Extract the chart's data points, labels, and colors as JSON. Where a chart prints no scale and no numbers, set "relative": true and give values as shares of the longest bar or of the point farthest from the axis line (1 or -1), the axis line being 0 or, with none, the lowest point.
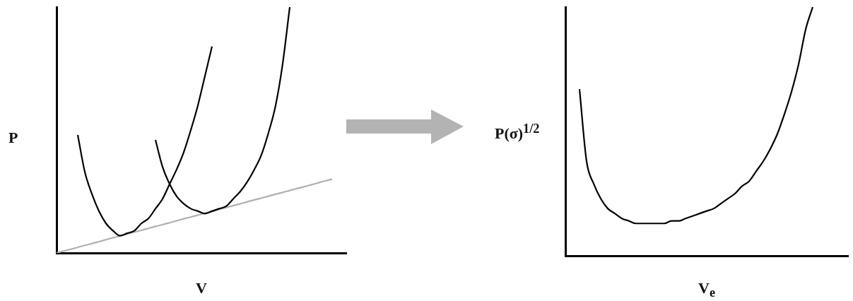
{
  "chart_data": [
    {
      "type": "line",
      "relative": true,
      "tick_labels": false,
      "grid": false,
      "legend": false,
      "xlabel": "V",
      "ylabel": "P",
      "categories": [
        null,
        null,
        null,
        null,
        null,
        null,
        null,
        null,
        null,
        null,
        null,
        null,
        null,
        null,
        null,
        null,
        null,
        null,
        null,
        null,
        null,
        null,
        null,
        null,
        null,
        null,
        null,
        null,
        null,
        null,
        null,
        null,
        null,
        null,
        null,
        null,
        null,
        null,
        null,
        null,
        null,
        null
      ],
      "series": [
        {
          "color": "#000000",
          "values": [
            null,
            null,
            null,
            0.48,
            0.33,
            0.24,
            0.17,
            0.12,
            0.09,
            0.07,
            0.08,
            0.09,
            0.12,
            0.14,
            0.18,
            0.22,
            0.28,
            0.34,
            0.41,
            0.5,
            0.6,
            0.72,
            0.84,
            null,
            null,
            null,
            null,
            null,
            null,
            null,
            null,
            null,
            null,
            null,
            null,
            null,
            null,
            null,
            null,
            null,
            null,
            null
          ]
        },
        {
          "color": "#000000",
          "values": [
            null,
            null,
            null,
            null,
            null,
            null,
            null,
            null,
            null,
            null,
            null,
            null,
            null,
            null,
            0.46,
            0.35,
            0.28,
            0.23,
            0.2,
            0.18,
            0.17,
            0.16,
            0.17,
            0.18,
            0.19,
            0.22,
            0.25,
            0.29,
            0.34,
            0.4,
            0.49,
            0.6,
            0.77,
            1.0,
            null,
            null,
            null,
            null,
            null,
            null,
            null,
            null
          ]
        },
        {
          "color": "#b0b0b0",
          "values": [
            0,
            0.008,
            0.015,
            0.023,
            0.031,
            0.038,
            0.046,
            0.054,
            0.062,
            0.069,
            0.077,
            0.085,
            0.092,
            0.1,
            0.108,
            0.115,
            0.123,
            0.131,
            0.139,
            0.146,
            0.154,
            0.162,
            0.169,
            0.177,
            0.185,
            0.192,
            0.2,
            0.208,
            0.216,
            0.223,
            0.231,
            0.239,
            0.246,
            0.254,
            0.262,
            0.269,
            0.277,
            0.285,
            0.293,
            0.3,
            null,
            null
          ]
        }
      ]
    },
    {
      "type": "line",
      "relative": true,
      "tick_labels": false,
      "grid": false,
      "legend": false,
      "xlabel": "V$_{e}$",
      "ylabel": "P(σ)$^{1/2}$",
      "categories": [
        null,
        null,
        null,
        null,
        null,
        null,
        null,
        null,
        null,
        null,
        null,
        null,
        null,
        null,
        null,
        null,
        null,
        null,
        null,
        null,
        null,
        null,
        null,
        null,
        null,
        null,
        null,
        null,
        null,
        null,
        null,
        null,
        null,
        null,
        null,
        null,
        null,
        null,
        null,
        null,
        null
      ],
      "series": [
        {
          "color": "#000000",
          "values": [
            null,
            null,
            0.67,
            0.38,
            0.29,
            0.23,
            0.19,
            0.17,
            0.15,
            0.14,
            0.13,
            0.13,
            0.13,
            0.13,
            0.13,
            0.14,
            0.14,
            0.15,
            0.16,
            0.17,
            0.18,
            0.19,
            0.21,
            0.23,
            0.25,
            0.28,
            0.3,
            0.34,
            0.38,
            0.43,
            0.49,
            0.57,
            0.66,
            0.77,
            0.91,
            1.0,
            null,
            null,
            null,
            null,
            null
          ]
        }
      ]
    }
  ]
}
